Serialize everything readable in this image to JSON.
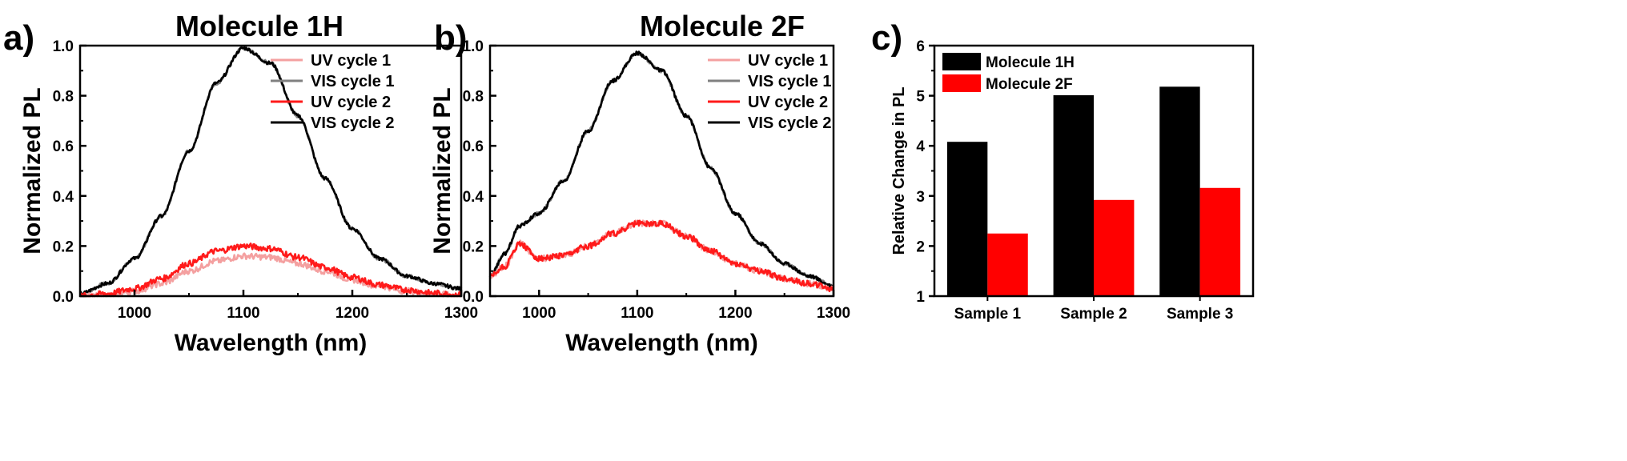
{
  "chart_data": [
    {
      "type": "line",
      "panel_label": "a)",
      "title": "Molecule 1H",
      "xlabel": "Wavelength (nm)",
      "ylabel": "Normalized PL",
      "xlim": [
        950,
        1300
      ],
      "ylim": [
        0,
        1.0
      ],
      "xticks": [
        "1000",
        "1100",
        "1200",
        "1300"
      ],
      "yticks": [
        "0.0",
        "0.2",
        "0.4",
        "0.6",
        "0.8",
        "1.0"
      ],
      "legend_position": "top-right",
      "series": [
        {
          "name": "UV cycle 1",
          "color": "#f4a0a0",
          "x": [
            950,
            975,
            1000,
            1025,
            1050,
            1075,
            1100,
            1125,
            1150,
            1175,
            1200,
            1225,
            1250,
            1275,
            1300
          ],
          "y": [
            0.0,
            0.0,
            0.02,
            0.05,
            0.1,
            0.14,
            0.16,
            0.155,
            0.13,
            0.1,
            0.065,
            0.04,
            0.02,
            0.01,
            0.0
          ]
        },
        {
          "name": "VIS cycle 1",
          "color": "#808080",
          "x": [
            950,
            975,
            1000,
            1025,
            1050,
            1075,
            1100,
            1125,
            1150,
            1175,
            1200,
            1225,
            1250,
            1275,
            1300
          ],
          "y": [
            0.01,
            0.05,
            0.15,
            0.32,
            0.58,
            0.85,
            0.99,
            0.93,
            0.72,
            0.47,
            0.27,
            0.15,
            0.08,
            0.05,
            0.03
          ]
        },
        {
          "name": "UV cycle 2",
          "color": "#ff1a1a",
          "x": [
            950,
            975,
            1000,
            1025,
            1050,
            1075,
            1100,
            1125,
            1150,
            1175,
            1200,
            1225,
            1250,
            1275,
            1300
          ],
          "y": [
            0.0,
            0.01,
            0.03,
            0.07,
            0.13,
            0.18,
            0.2,
            0.19,
            0.155,
            0.115,
            0.075,
            0.045,
            0.025,
            0.012,
            0.005
          ]
        },
        {
          "name": "VIS cycle 2",
          "color": "#000000",
          "x": [
            950,
            975,
            1000,
            1025,
            1050,
            1075,
            1100,
            1125,
            1150,
            1175,
            1200,
            1225,
            1250,
            1275,
            1300
          ],
          "y": [
            0.01,
            0.05,
            0.15,
            0.32,
            0.58,
            0.85,
            0.99,
            0.93,
            0.72,
            0.47,
            0.27,
            0.15,
            0.08,
            0.05,
            0.03
          ]
        }
      ]
    },
    {
      "type": "line",
      "panel_label": "b)",
      "title": "Molecule 2F",
      "xlabel": "Wavelength (nm)",
      "ylabel": "Normalized PL",
      "xlim": [
        950,
        1300
      ],
      "ylim": [
        0,
        1.0
      ],
      "xticks": [
        "1000",
        "1100",
        "1200",
        "1300"
      ],
      "yticks": [
        "0.0",
        "0.2",
        "0.4",
        "0.6",
        "0.8",
        "1.0"
      ],
      "legend_position": "top-right",
      "series": [
        {
          "name": "UV cycle 1",
          "color": "#f4a0a0",
          "x": [
            950,
            965,
            980,
            1000,
            1025,
            1050,
            1075,
            1100,
            1125,
            1150,
            1175,
            1200,
            1225,
            1250,
            1275,
            1300
          ],
          "y": [
            0.08,
            0.12,
            0.21,
            0.15,
            0.16,
            0.2,
            0.25,
            0.29,
            0.29,
            0.24,
            0.18,
            0.13,
            0.1,
            0.07,
            0.05,
            0.03
          ]
        },
        {
          "name": "VIS cycle 1",
          "color": "#808080",
          "x": [
            950,
            965,
            980,
            1000,
            1025,
            1050,
            1075,
            1100,
            1125,
            1150,
            1175,
            1200,
            1225,
            1250,
            1275,
            1300
          ],
          "y": [
            0.08,
            0.17,
            0.28,
            0.33,
            0.46,
            0.66,
            0.86,
            0.97,
            0.9,
            0.72,
            0.51,
            0.33,
            0.21,
            0.13,
            0.08,
            0.04
          ]
        },
        {
          "name": "UV cycle 2",
          "color": "#ff1a1a",
          "x": [
            950,
            965,
            980,
            1000,
            1025,
            1050,
            1075,
            1100,
            1125,
            1150,
            1175,
            1200,
            1225,
            1250,
            1275,
            1300
          ],
          "y": [
            0.08,
            0.12,
            0.21,
            0.15,
            0.16,
            0.2,
            0.25,
            0.29,
            0.29,
            0.24,
            0.18,
            0.13,
            0.1,
            0.07,
            0.05,
            0.03
          ]
        },
        {
          "name": "VIS cycle 2",
          "color": "#000000",
          "x": [
            950,
            965,
            980,
            1000,
            1025,
            1050,
            1075,
            1100,
            1125,
            1150,
            1175,
            1200,
            1225,
            1250,
            1275,
            1300
          ],
          "y": [
            0.08,
            0.17,
            0.28,
            0.33,
            0.46,
            0.66,
            0.86,
            0.97,
            0.9,
            0.72,
            0.51,
            0.33,
            0.21,
            0.13,
            0.08,
            0.04
          ]
        }
      ]
    },
    {
      "type": "bar",
      "panel_label": "c)",
      "title": "",
      "xlabel": "",
      "ylabel": "Relative Change in PL",
      "ylim": [
        1,
        6
      ],
      "yticks": [
        "1",
        "2",
        "3",
        "4",
        "5",
        "6"
      ],
      "categories": [
        "Sample 1",
        "Sample 2",
        "Sample 3"
      ],
      "legend_position": "top-left",
      "series": [
        {
          "name": "Molecule 1H",
          "color": "#000000",
          "values": [
            4.08,
            5.01,
            5.18
          ]
        },
        {
          "name": "Molecule 2F",
          "color": "#ff0000",
          "values": [
            2.25,
            2.92,
            3.16
          ]
        }
      ]
    }
  ]
}
